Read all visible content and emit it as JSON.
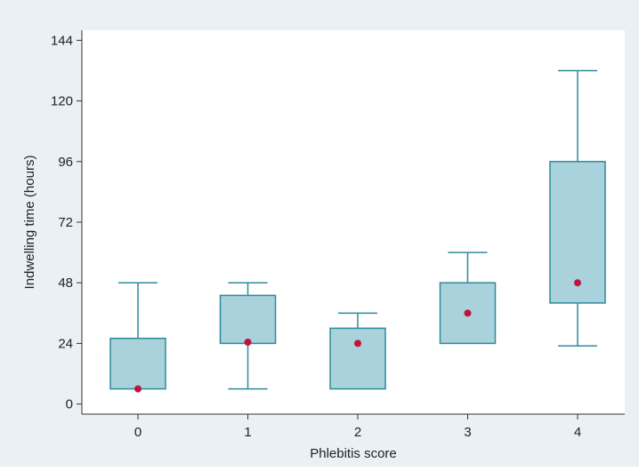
{
  "colors": {
    "outer_background": "#e9f1f5",
    "plot_background": "#ffffff",
    "box_fill": "#a9d2dc",
    "box_stroke": "#2e8b9a",
    "median_marker": "#c2143a",
    "axis": "#333333"
  },
  "chart_data": {
    "type": "box",
    "title": "",
    "xlabel": "Phlebitis score",
    "ylabel": "Indwelling time (hours)",
    "ylim": [
      -4,
      148
    ],
    "yticks": [
      0,
      24,
      48,
      72,
      96,
      120,
      144
    ],
    "categories": [
      "0",
      "1",
      "2",
      "3",
      "4"
    ],
    "grid": false,
    "legend": "none",
    "boxes": [
      {
        "category": "0",
        "whisker_low": 6,
        "q1": 6,
        "q3": 26,
        "whisker_high": 48,
        "median": 6
      },
      {
        "category": "1",
        "whisker_low": 6,
        "q1": 24,
        "q3": 43,
        "whisker_high": 48,
        "median": 24.5
      },
      {
        "category": "2",
        "whisker_low": 6,
        "q1": 6,
        "q3": 30,
        "whisker_high": 36,
        "median": 24
      },
      {
        "category": "3",
        "whisker_low": 24,
        "q1": 24,
        "q3": 48,
        "whisker_high": 60,
        "median": 36
      },
      {
        "category": "4",
        "whisker_low": 23,
        "q1": 40,
        "q3": 96,
        "whisker_high": 132,
        "median": 48
      }
    ]
  }
}
